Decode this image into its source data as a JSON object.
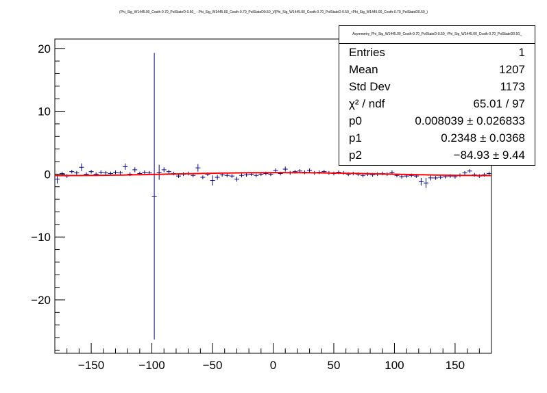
{
  "figure": {
    "title": "(Phi_Sig_W1445.00_Costh-0.70_PolStateD-0.50_ - Phi_Sig_W1445.00_Costh-0.70_PolStateD0.50_)/(Phi_Sig_W1445.00_Costh-0.70_PolStateD-0.50_+Phi_Sig_W1445.00_Costh-0.70_PolStateD0.50_)"
  },
  "stats": {
    "title": "Asymmetry_Phi_Sig_W1445.00_Costh-0.70_PolStateD-0.50_-Phi_Sig_W1445.00_Costh-0.70_PolStateD0.50_",
    "rows": [
      {
        "label": "Entries",
        "value": "1"
      },
      {
        "label": "Mean",
        "value": "1207"
      },
      {
        "label": "Std Dev",
        "value": "1173"
      },
      {
        "label": "χ² / ndf",
        "value": "65.01 / 97"
      },
      {
        "label": "p0",
        "value": "0.008039 ± 0.026833"
      },
      {
        "label": "p1",
        "value": "0.2348 ± 0.0368"
      },
      {
        "label": "p2",
        "value": "−84.93 ± 9.44"
      }
    ]
  },
  "chart_data": {
    "type": "scatter",
    "xlim": [
      -180,
      180
    ],
    "ylim": [
      -28.5,
      21.5
    ],
    "x_ticks": [
      -150,
      -100,
      -50,
      0,
      50,
      100,
      150
    ],
    "x_tick_labels": [
      "−150",
      "−100",
      "−50",
      "0",
      "50",
      "100",
      "150"
    ],
    "y_ticks": [
      -20,
      -10,
      0,
      10,
      20
    ],
    "y_tick_labels": [
      "−20",
      "−10",
      "0",
      "10",
      "20"
    ],
    "points": [
      {
        "x": -178,
        "y": -0.8,
        "err": 0.7
      },
      {
        "x": -174,
        "y": 0.1,
        "err": 0.3
      },
      {
        "x": -170,
        "y": -0.3,
        "err": 0.3
      },
      {
        "x": -166,
        "y": 0.4,
        "err": 0.3
      },
      {
        "x": -162,
        "y": 0.2,
        "err": 0.3
      },
      {
        "x": -158,
        "y": 1.1,
        "err": 0.6
      },
      {
        "x": -154,
        "y": 0.0,
        "err": 0.3
      },
      {
        "x": -150,
        "y": 0.4,
        "err": 0.3
      },
      {
        "x": -146,
        "y": 0.0,
        "err": 0.3
      },
      {
        "x": -142,
        "y": 0.3,
        "err": 0.3
      },
      {
        "x": -138,
        "y": 0.2,
        "err": 0.3
      },
      {
        "x": -134,
        "y": 0.1,
        "err": 0.3
      },
      {
        "x": -130,
        "y": 0.3,
        "err": 0.3
      },
      {
        "x": -126,
        "y": 0.2,
        "err": 0.3
      },
      {
        "x": -122,
        "y": 1.2,
        "err": 0.5
      },
      {
        "x": -118,
        "y": 0.0,
        "err": 0.3
      },
      {
        "x": -114,
        "y": 0.7,
        "err": 0.4
      },
      {
        "x": -110,
        "y": 0.1,
        "err": 0.3
      },
      {
        "x": -106,
        "y": 0.3,
        "err": 0.3
      },
      {
        "x": -102,
        "y": 0.2,
        "err": 0.3
      },
      {
        "x": -98,
        "y": -3.5,
        "err": 22.8
      },
      {
        "x": -94,
        "y": 0.3,
        "err": 1.2
      },
      {
        "x": -90,
        "y": 0.7,
        "err": 0.4
      },
      {
        "x": -86,
        "y": 0.4,
        "err": 0.3
      },
      {
        "x": -82,
        "y": 0.1,
        "err": 0.3
      },
      {
        "x": -78,
        "y": -0.3,
        "err": 0.3
      },
      {
        "x": -74,
        "y": 0.0,
        "err": 0.3
      },
      {
        "x": -70,
        "y": 0.1,
        "err": 0.3
      },
      {
        "x": -66,
        "y": -0.2,
        "err": 0.3
      },
      {
        "x": -62,
        "y": 1.0,
        "err": 0.6
      },
      {
        "x": -58,
        "y": -0.5,
        "err": 0.3
      },
      {
        "x": -54,
        "y": 0.0,
        "err": 0.3
      },
      {
        "x": -50,
        "y": -1.0,
        "err": 0.8
      },
      {
        "x": -46,
        "y": -0.5,
        "err": 0.4
      },
      {
        "x": -42,
        "y": -0.1,
        "err": 0.3
      },
      {
        "x": -38,
        "y": -0.2,
        "err": 0.3
      },
      {
        "x": -34,
        "y": -0.3,
        "err": 0.3
      },
      {
        "x": -30,
        "y": -0.8,
        "err": 0.4
      },
      {
        "x": -26,
        "y": -0.2,
        "err": 0.3
      },
      {
        "x": -22,
        "y": -0.1,
        "err": 0.3
      },
      {
        "x": -18,
        "y": 0.0,
        "err": 0.3
      },
      {
        "x": -14,
        "y": -0.2,
        "err": 0.3
      },
      {
        "x": -10,
        "y": 0.0,
        "err": 0.3
      },
      {
        "x": -6,
        "y": 0.1,
        "err": 0.3
      },
      {
        "x": -2,
        "y": 0.0,
        "err": 0.3
      },
      {
        "x": 2,
        "y": 0.6,
        "err": 0.3
      },
      {
        "x": 6,
        "y": 0.1,
        "err": 0.3
      },
      {
        "x": 10,
        "y": 0.8,
        "err": 0.4
      },
      {
        "x": 14,
        "y": 0.2,
        "err": 0.3
      },
      {
        "x": 18,
        "y": 0.4,
        "err": 0.3
      },
      {
        "x": 22,
        "y": 0.5,
        "err": 0.3
      },
      {
        "x": 26,
        "y": 0.3,
        "err": 0.3
      },
      {
        "x": 30,
        "y": 0.6,
        "err": 0.3
      },
      {
        "x": 34,
        "y": 0.2,
        "err": 0.3
      },
      {
        "x": 38,
        "y": 0.3,
        "err": 0.3
      },
      {
        "x": 42,
        "y": 0.4,
        "err": 0.3
      },
      {
        "x": 46,
        "y": 0.2,
        "err": 0.3
      },
      {
        "x": 50,
        "y": 0.1,
        "err": 0.3
      },
      {
        "x": 54,
        "y": 0.3,
        "err": 0.3
      },
      {
        "x": 58,
        "y": 0.2,
        "err": 0.3
      },
      {
        "x": 62,
        "y": 0.0,
        "err": 0.3
      },
      {
        "x": 66,
        "y": 0.1,
        "err": 0.3
      },
      {
        "x": 70,
        "y": 0.0,
        "err": 0.3
      },
      {
        "x": 74,
        "y": -0.2,
        "err": 0.3
      },
      {
        "x": 78,
        "y": 0.0,
        "err": 0.3
      },
      {
        "x": 82,
        "y": -0.1,
        "err": 0.3
      },
      {
        "x": 86,
        "y": 0.0,
        "err": 0.3
      },
      {
        "x": 90,
        "y": 0.1,
        "err": 0.3
      },
      {
        "x": 94,
        "y": 0.0,
        "err": 0.3
      },
      {
        "x": 98,
        "y": 0.3,
        "err": 0.3
      },
      {
        "x": 102,
        "y": -0.2,
        "err": 0.3
      },
      {
        "x": 106,
        "y": -0.4,
        "err": 0.3
      },
      {
        "x": 110,
        "y": -0.3,
        "err": 0.3
      },
      {
        "x": 114,
        "y": -0.2,
        "err": 0.3
      },
      {
        "x": 118,
        "y": -0.3,
        "err": 0.3
      },
      {
        "x": 122,
        "y": -1.2,
        "err": 0.6
      },
      {
        "x": 126,
        "y": -1.4,
        "err": 0.8
      },
      {
        "x": 130,
        "y": -0.6,
        "err": 0.4
      },
      {
        "x": 134,
        "y": -0.6,
        "err": 0.3
      },
      {
        "x": 138,
        "y": -0.5,
        "err": 0.3
      },
      {
        "x": 142,
        "y": -0.4,
        "err": 0.3
      },
      {
        "x": 146,
        "y": -0.3,
        "err": 0.3
      },
      {
        "x": 150,
        "y": -0.4,
        "err": 0.3
      },
      {
        "x": 154,
        "y": -0.2,
        "err": 0.3
      },
      {
        "x": 158,
        "y": 0.2,
        "err": 0.3
      },
      {
        "x": 162,
        "y": 0.5,
        "err": 0.3
      },
      {
        "x": 166,
        "y": -0.1,
        "err": 0.3
      },
      {
        "x": 170,
        "y": -0.3,
        "err": 0.3
      },
      {
        "x": 174,
        "y": -0.1,
        "err": 0.3
      },
      {
        "x": 178,
        "y": 0.1,
        "err": 0.3
      }
    ],
    "fit": {
      "p0": 0.008039,
      "p1": 0.2348,
      "p2": -84.93
    },
    "colors": {
      "points": "#000080",
      "fit": "#ff0000",
      "axis": "#000000"
    }
  }
}
